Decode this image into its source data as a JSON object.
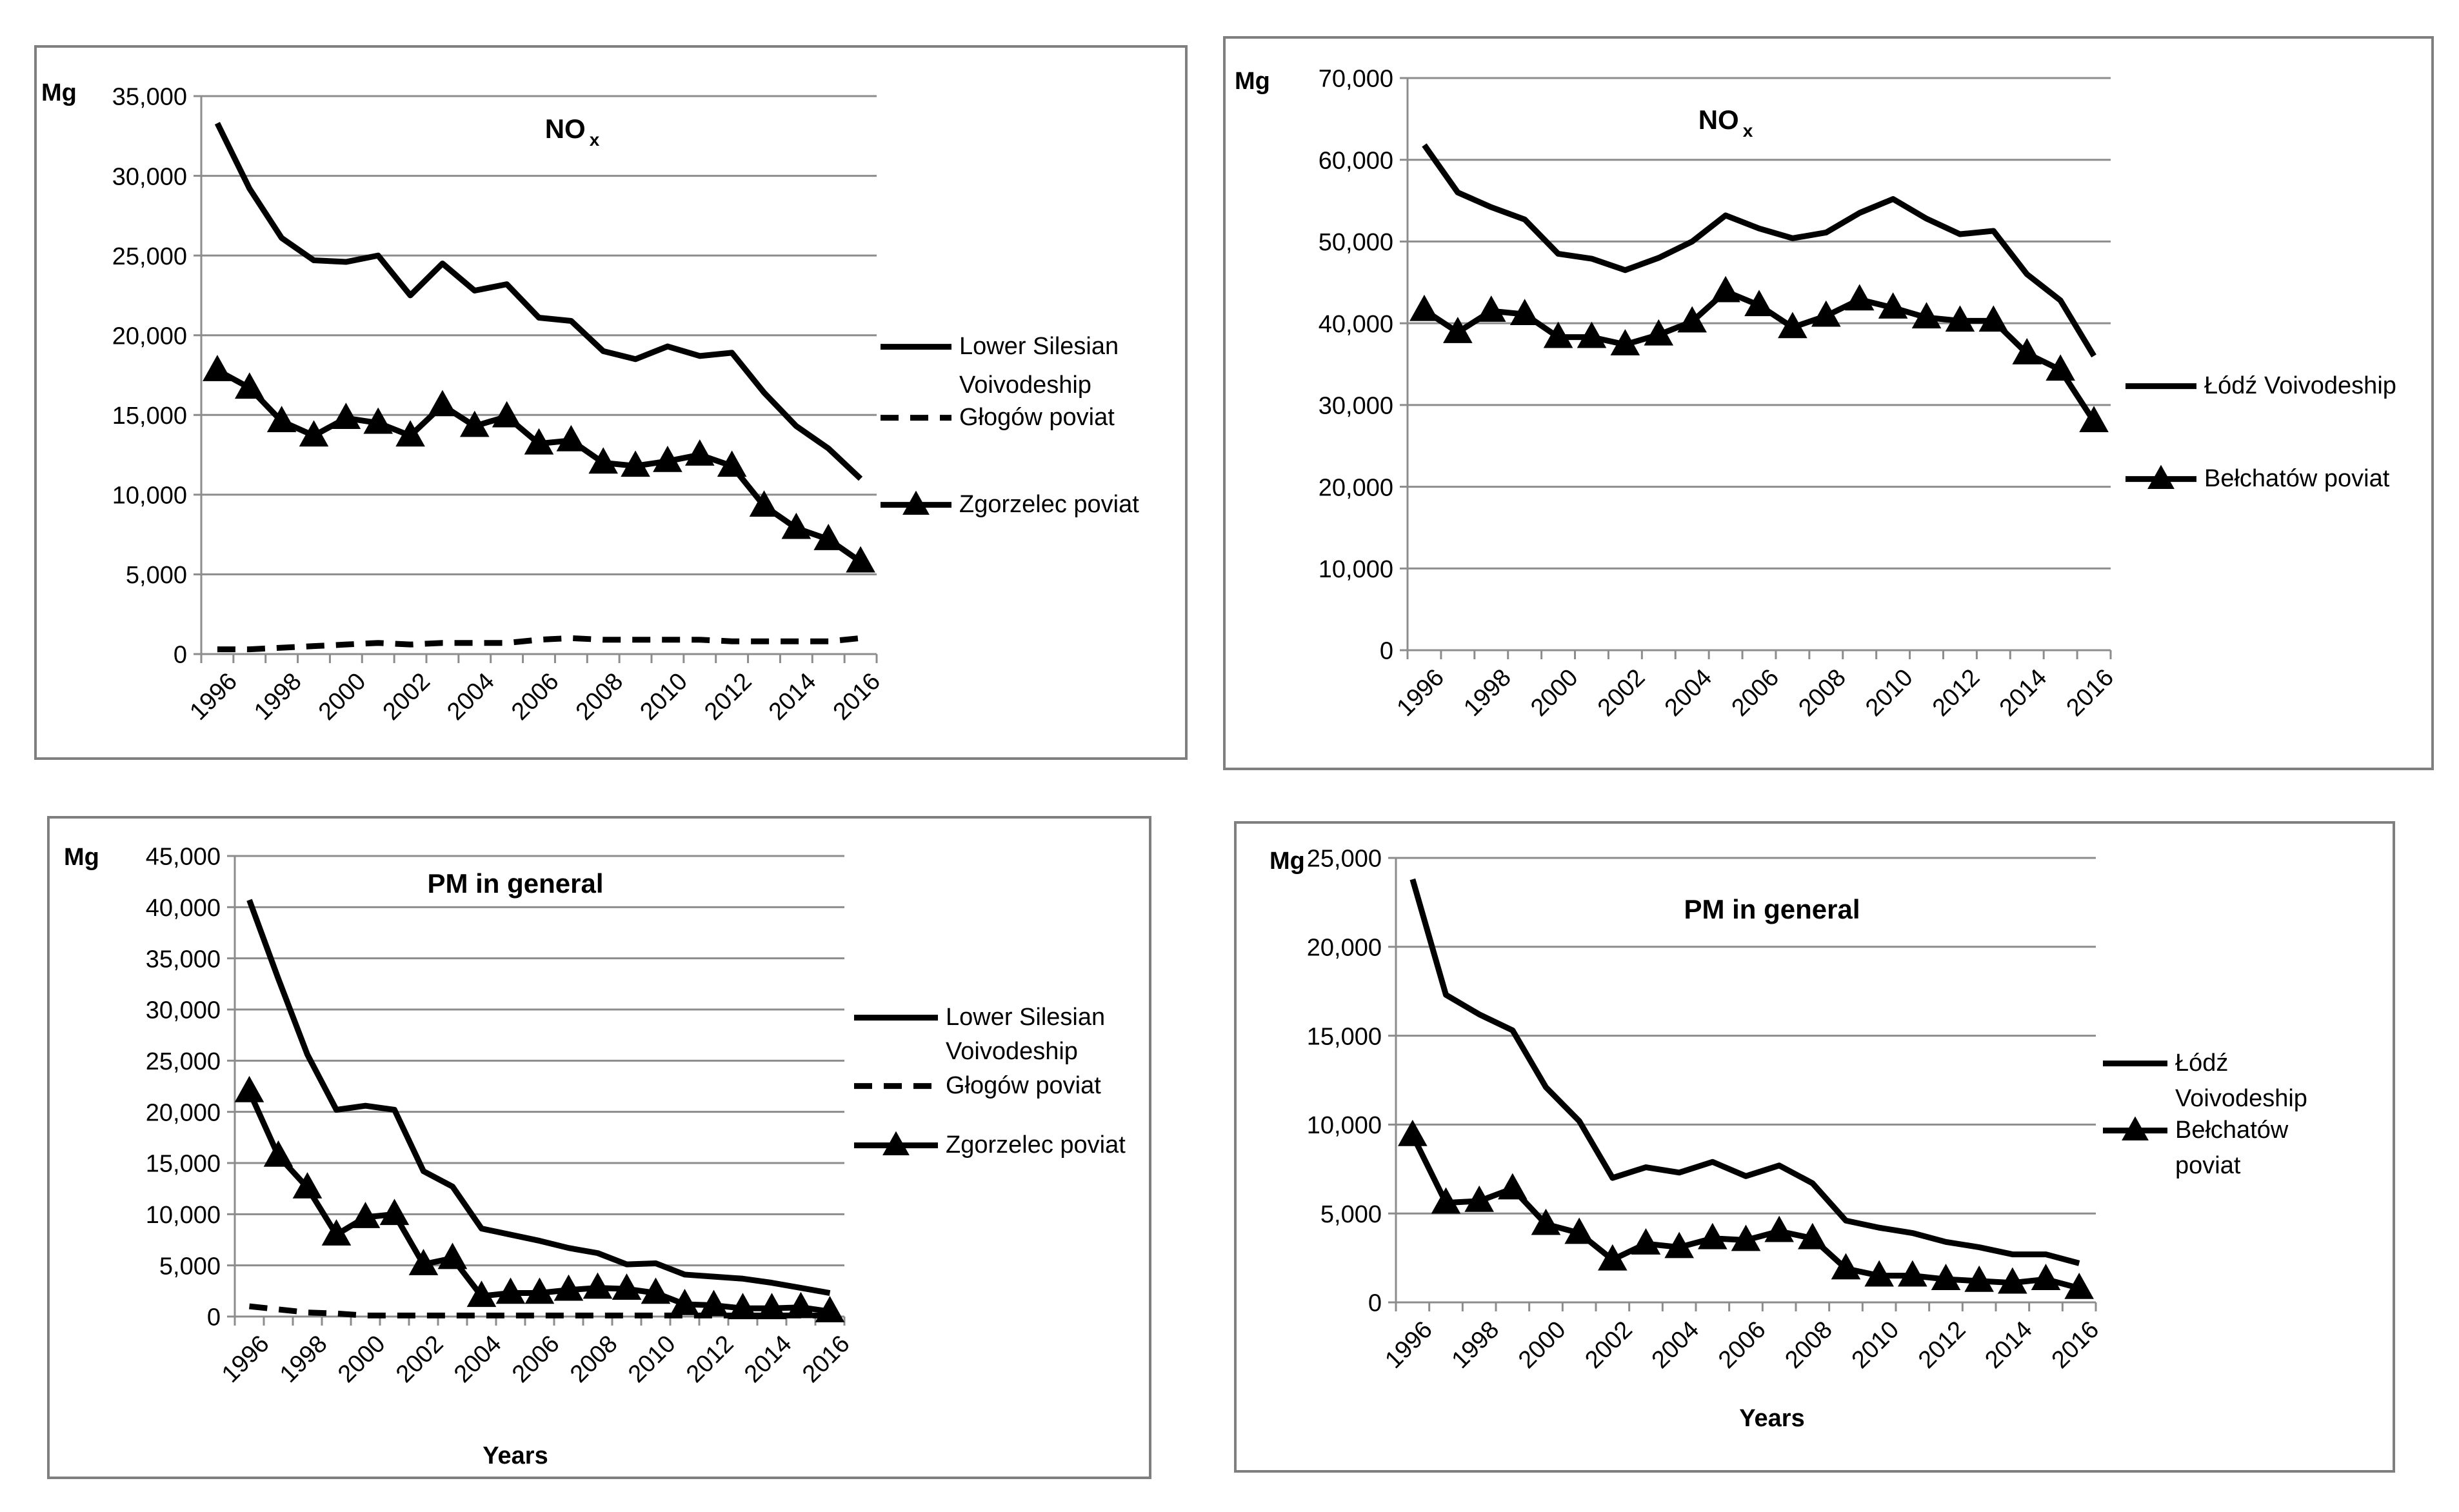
{
  "chart_data": [
    {
      "type": "line",
      "panel": "top-left",
      "title": "NO",
      "title_sub": "x",
      "unit": "Mg",
      "xlabel": "",
      "ylim": [
        0,
        35000
      ],
      "yticks": [
        0,
        5000,
        10000,
        15000,
        20000,
        25000,
        30000,
        35000
      ],
      "ytick_labels": [
        "0",
        "5,000",
        "10,000",
        "15,000",
        "20,000",
        "25,000",
        "30,000",
        "35,000"
      ],
      "x": [
        1996,
        1997,
        1998,
        1999,
        2000,
        2001,
        2002,
        2003,
        2004,
        2005,
        2006,
        2007,
        2008,
        2009,
        2010,
        2011,
        2012,
        2013,
        2014,
        2015,
        2016
      ],
      "xtick_labels": [
        "1996",
        "1998",
        "2000",
        "2002",
        "2004",
        "2006",
        "2008",
        "2010",
        "2012",
        "2014",
        "2016"
      ],
      "legend_position": "right",
      "series": [
        {
          "name_lines": [
            "Lower Silesian",
            "Voivodeship"
          ],
          "style": "solid",
          "marker": "none",
          "values": [
            33300,
            29200,
            26100,
            24700,
            24600,
            25000,
            22500,
            24500,
            22800,
            23200,
            21100,
            20900,
            19000,
            18500,
            19300,
            18700,
            18900,
            16400,
            14300,
            12900,
            11000
          ]
        },
        {
          "name_lines": [
            "Głogów poviat"
          ],
          "style": "dashed",
          "marker": "none",
          "values": [
            300,
            300,
            400,
            500,
            600,
            700,
            600,
            700,
            700,
            700,
            900,
            1000,
            900,
            900,
            900,
            900,
            800,
            800,
            800,
            800,
            1000
          ]
        },
        {
          "name_lines": [
            "Zgorzelec poviat"
          ],
          "style": "solid",
          "marker": "triangle",
          "values": [
            17800,
            16700,
            14600,
            13700,
            14800,
            14500,
            13700,
            15600,
            14300,
            14900,
            13200,
            13400,
            12000,
            11800,
            12100,
            12500,
            11800,
            9300,
            7900,
            7200,
            5800
          ]
        }
      ]
    },
    {
      "type": "line",
      "panel": "top-right",
      "title": "NO",
      "title_sub": "x",
      "unit": "Mg",
      "xlabel": "",
      "ylim": [
        0,
        70000
      ],
      "yticks": [
        0,
        10000,
        20000,
        30000,
        40000,
        50000,
        60000,
        70000
      ],
      "ytick_labels": [
        "0",
        "10,000",
        "20,000",
        "30,000",
        "40,000",
        "50,000",
        "60,000",
        "70,000"
      ],
      "x": [
        1996,
        1997,
        1998,
        1999,
        2000,
        2001,
        2002,
        2003,
        2004,
        2005,
        2006,
        2007,
        2008,
        2009,
        2010,
        2011,
        2012,
        2013,
        2014,
        2015,
        2016
      ],
      "xtick_labels": [
        "1996",
        "1998",
        "2000",
        "2002",
        "2004",
        "2006",
        "2008",
        "2010",
        "2012",
        "2014",
        "2016"
      ],
      "legend_position": "right",
      "series": [
        {
          "name_lines": [
            "Łódź Voivodeship"
          ],
          "style": "solid",
          "marker": "none",
          "values": [
            61800,
            56000,
            54200,
            52700,
            48500,
            47900,
            46500,
            48000,
            50000,
            53200,
            51600,
            50400,
            51100,
            53500,
            55200,
            52800,
            50900,
            51300,
            46000,
            42800,
            36000
          ]
        },
        {
          "name_lines": [
            "Bełchatów poviat"
          ],
          "style": "solid",
          "marker": "triangle",
          "values": [
            41600,
            38900,
            41500,
            41100,
            38300,
            38300,
            37400,
            38600,
            40200,
            43900,
            42200,
            39500,
            40900,
            42900,
            41900,
            40700,
            40300,
            40300,
            36300,
            34300,
            28000
          ]
        }
      ]
    },
    {
      "type": "line",
      "panel": "bottom-left",
      "title": "PM in general",
      "unit": "Mg",
      "xlabel": "Years",
      "ylim": [
        0,
        45000
      ],
      "yticks": [
        0,
        5000,
        10000,
        15000,
        20000,
        25000,
        30000,
        35000,
        40000,
        45000
      ],
      "ytick_labels": [
        "0",
        "5,000",
        "10,000",
        "15,000",
        "20,000",
        "25,000",
        "30,000",
        "35,000",
        "40,000",
        "45,000"
      ],
      "x": [
        1996,
        1997,
        1998,
        1999,
        2000,
        2001,
        2002,
        2003,
        2004,
        2005,
        2006,
        2007,
        2008,
        2009,
        2010,
        2011,
        2012,
        2013,
        2014,
        2015,
        2016
      ],
      "xtick_labels": [
        "1996",
        "1998",
        "2000",
        "2002",
        "2004",
        "2006",
        "2008",
        "2010",
        "2012",
        "2014",
        "2016"
      ],
      "legend_position": "right",
      "series": [
        {
          "name_lines": [
            "Lower Silesian",
            "Voivodeship"
          ],
          "style": "solid",
          "marker": "none",
          "values": [
            40700,
            33000,
            25600,
            20200,
            20600,
            20200,
            14200,
            12700,
            8600,
            8000,
            7400,
            6700,
            6200,
            5100,
            5200,
            4100,
            3900,
            3700,
            3300,
            2800,
            2300
          ]
        },
        {
          "name_lines": [
            "Głogów poviat"
          ],
          "style": "dashed",
          "marker": "none",
          "values": [
            1000,
            700,
            400,
            300,
            100,
            100,
            100,
            100,
            100,
            100,
            100,
            100,
            100,
            100,
            100,
            100,
            100,
            100,
            100,
            100,
            100
          ]
        },
        {
          "name_lines": [
            "Zgorzelec poviat"
          ],
          "style": "solid",
          "marker": "triangle",
          "values": [
            22000,
            15700,
            12600,
            8000,
            9700,
            10000,
            5100,
            5700,
            2000,
            2300,
            2300,
            2600,
            2800,
            2700,
            2300,
            1200,
            1100,
            800,
            800,
            900,
            500
          ]
        }
      ]
    },
    {
      "type": "line",
      "panel": "bottom-right",
      "title": "PM in general",
      "unit": "Mg",
      "xlabel": "Years",
      "ylim": [
        0,
        25000
      ],
      "yticks": [
        0,
        5000,
        10000,
        15000,
        20000,
        25000
      ],
      "ytick_labels": [
        "0",
        "5,000",
        "10,000",
        "15,000",
        "20,000",
        "25,000"
      ],
      "x": [
        1996,
        1997,
        1998,
        1999,
        2000,
        2001,
        2002,
        2003,
        2004,
        2005,
        2006,
        2007,
        2008,
        2009,
        2010,
        2011,
        2012,
        2013,
        2014,
        2015,
        2016
      ],
      "xtick_labels": [
        "1996",
        "1998",
        "2000",
        "2002",
        "2004",
        "2006",
        "2008",
        "2010",
        "2012",
        "2014",
        "2016"
      ],
      "legend_position": "right",
      "series": [
        {
          "name_lines": [
            "Łódź",
            "Voivodeship"
          ],
          "style": "solid",
          "marker": "none",
          "values": [
            23800,
            17300,
            16200,
            15300,
            12100,
            10200,
            7000,
            7600,
            7300,
            7900,
            7100,
            7700,
            6700,
            4600,
            4200,
            3900,
            3400,
            3100,
            2700,
            2700,
            2200
          ]
        },
        {
          "name_lines": [
            "Bełchatów",
            "poviat"
          ],
          "style": "solid",
          "marker": "triangle",
          "values": [
            9400,
            5600,
            5700,
            6400,
            4400,
            3900,
            2400,
            3300,
            3100,
            3600,
            3500,
            4000,
            3600,
            1900,
            1500,
            1500,
            1300,
            1200,
            1100,
            1300,
            800
          ]
        }
      ]
    }
  ]
}
